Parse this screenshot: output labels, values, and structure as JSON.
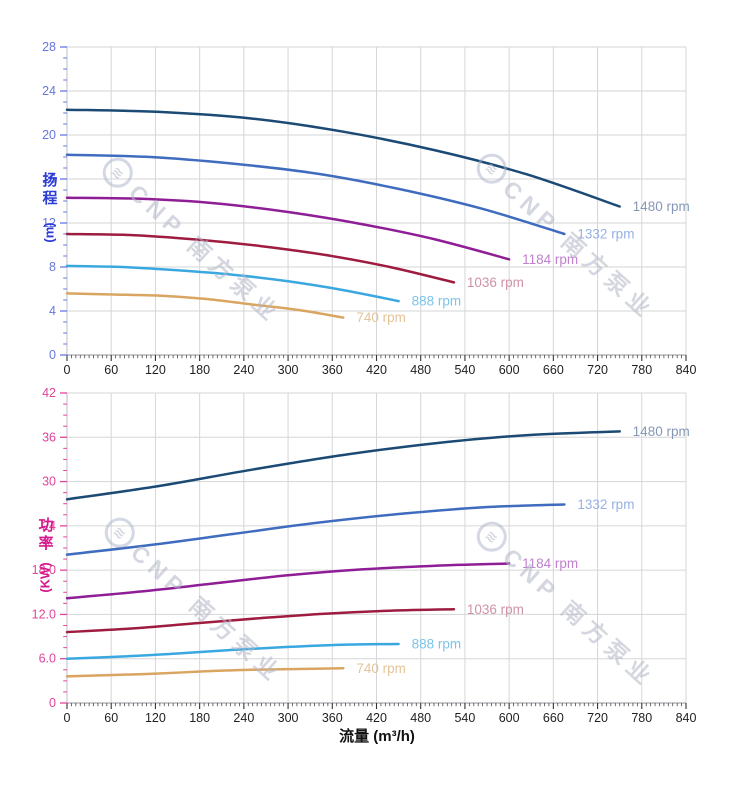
{
  "watermark": {
    "logo": "≋",
    "text": "CNP 南方泵业"
  },
  "chart_data": [
    {
      "type": "line",
      "title": "",
      "ylabel": "扬程 (m)",
      "ylabel_cn": "扬程",
      "ylabel_unit": "(m)",
      "xlabel": "",
      "xlim": [
        0,
        840
      ],
      "ylim": [
        0,
        28
      ],
      "grid": true,
      "legend_position": "end-of-curve",
      "x_ticks": [
        0,
        60,
        120,
        180,
        240,
        300,
        360,
        420,
        480,
        540,
        600,
        660,
        720,
        780,
        840
      ],
      "x_tick_labels": [
        "0",
        "60",
        "120",
        "180",
        "240",
        "300",
        "360",
        "420",
        "480",
        "540",
        "600",
        "660",
        "720",
        "780",
        "840"
      ],
      "x_minor_step": 6,
      "y_ticks": [
        0,
        4,
        8,
        12,
        16,
        20,
        24,
        28
      ],
      "y_tick_labels": [
        "0",
        "4",
        "8",
        "12",
        "16",
        "20",
        "24",
        "28"
      ],
      "y_minor_step": 1,
      "y_tick_color": "#6677dd",
      "x_tick_label_color": "#1f1f1f",
      "series": [
        {
          "name": "1480 rpm",
          "color": "#1b4a75",
          "label_color": "#8598b6",
          "points": [
            [
              0,
              22.3
            ],
            [
              125,
              22.1
            ],
            [
              250,
              21.5
            ],
            [
              375,
              20.3
            ],
            [
              500,
              18.6
            ],
            [
              625,
              16.4
            ],
            [
              750,
              13.5
            ]
          ]
        },
        {
          "name": "1332 rpm",
          "color": "#3f6cbf",
          "label_color": "#97b1e2",
          "points": [
            [
              0,
              18.2
            ],
            [
              113,
              18.0
            ],
            [
              225,
              17.4
            ],
            [
              338,
              16.5
            ],
            [
              450,
              15.1
            ],
            [
              563,
              13.3
            ],
            [
              675,
              11.0
            ]
          ]
        },
        {
          "name": "1184 rpm",
          "color": "#8e1d96",
          "label_color": "#c27fce",
          "points": [
            [
              0,
              14.3
            ],
            [
              100,
              14.2
            ],
            [
              200,
              13.8
            ],
            [
              300,
              13.0
            ],
            [
              400,
              11.9
            ],
            [
              500,
              10.5
            ],
            [
              600,
              8.7
            ]
          ]
        },
        {
          "name": "1036 rpm",
          "color": "#9e1c3f",
          "label_color": "#cf93a8",
          "points": [
            [
              0,
              11.0
            ],
            [
              88,
              10.9
            ],
            [
              175,
              10.5
            ],
            [
              263,
              9.9
            ],
            [
              350,
              9.1
            ],
            [
              438,
              8.0
            ],
            [
              525,
              6.6
            ]
          ]
        },
        {
          "name": "888 rpm",
          "color": "#3aa8e0",
          "label_color": "#7cc4ea",
          "points": [
            [
              0,
              8.1
            ],
            [
              75,
              8.0
            ],
            [
              150,
              7.7
            ],
            [
              225,
              7.3
            ],
            [
              300,
              6.7
            ],
            [
              375,
              5.9
            ],
            [
              450,
              4.9
            ]
          ]
        },
        {
          "name": "740 rpm",
          "color": "#d9a561",
          "label_color": "#e3c49a",
          "points": [
            [
              0,
              5.6
            ],
            [
              63,
              5.5
            ],
            [
              125,
              5.4
            ],
            [
              188,
              5.1
            ],
            [
              250,
              4.6
            ],
            [
              313,
              4.1
            ],
            [
              375,
              3.4
            ]
          ]
        }
      ]
    },
    {
      "type": "line",
      "title": "",
      "ylabel": "功率 (KW)",
      "ylabel_cn": "功率",
      "ylabel_unit": "(KW)",
      "xlabel": "流量 (m³/h)",
      "xlim": [
        0,
        840
      ],
      "ylim": [
        0,
        42
      ],
      "grid": true,
      "legend_position": "end-of-curve",
      "x_ticks": [
        0,
        60,
        120,
        180,
        240,
        300,
        360,
        420,
        480,
        540,
        600,
        660,
        720,
        780,
        840
      ],
      "x_tick_labels": [
        "0",
        "60",
        "120",
        "180",
        "240",
        "300",
        "360",
        "420",
        "480",
        "540",
        "600",
        "660",
        "720",
        "780",
        "840"
      ],
      "x_minor_step": 6,
      "y_ticks": [
        0,
        6,
        12,
        18,
        24,
        30,
        36,
        42
      ],
      "y_tick_labels": [
        "0",
        "6.0",
        "12.0",
        "18.0",
        "24",
        "30",
        "36",
        "42"
      ],
      "y_minor_step": 1.5,
      "y_tick_color": "#e0459a",
      "x_tick_label_color": "#1f1f1f",
      "series": [
        {
          "name": "1480 rpm",
          "color": "#1b4a75",
          "label_color": "#8598b6",
          "points": [
            [
              0,
              27.6
            ],
            [
              125,
              29.4
            ],
            [
              250,
              31.6
            ],
            [
              375,
              33.6
            ],
            [
              500,
              35.2
            ],
            [
              625,
              36.3
            ],
            [
              750,
              36.8
            ]
          ]
        },
        {
          "name": "1332 rpm",
          "color": "#3f6cbf",
          "label_color": "#97b1e2",
          "points": [
            [
              0,
              20.1
            ],
            [
              113,
              21.4
            ],
            [
              225,
              22.9
            ],
            [
              338,
              24.4
            ],
            [
              450,
              25.6
            ],
            [
              563,
              26.5
            ],
            [
              675,
              26.9
            ]
          ]
        },
        {
          "name": "1184 rpm",
          "color": "#8e1d96",
          "label_color": "#c27fce",
          "points": [
            [
              0,
              14.2
            ],
            [
              100,
              15.1
            ],
            [
              200,
              16.2
            ],
            [
              300,
              17.3
            ],
            [
              400,
              18.1
            ],
            [
              500,
              18.6
            ],
            [
              600,
              18.9
            ]
          ]
        },
        {
          "name": "1036 rpm",
          "color": "#9e1c3f",
          "label_color": "#cf93a8",
          "points": [
            [
              0,
              9.6
            ],
            [
              88,
              10.1
            ],
            [
              175,
              10.8
            ],
            [
              263,
              11.5
            ],
            [
              350,
              12.1
            ],
            [
              438,
              12.5
            ],
            [
              525,
              12.7
            ]
          ]
        },
        {
          "name": "888 rpm",
          "color": "#3aa8e0",
          "label_color": "#7cc4ea",
          "points": [
            [
              0,
              6.0
            ],
            [
              75,
              6.3
            ],
            [
              150,
              6.7
            ],
            [
              225,
              7.2
            ],
            [
              300,
              7.6
            ],
            [
              375,
              7.9
            ],
            [
              450,
              8.0
            ]
          ]
        },
        {
          "name": "740 rpm",
          "color": "#d9a561",
          "label_color": "#e3c49a",
          "points": [
            [
              0,
              3.6
            ],
            [
              63,
              3.8
            ],
            [
              125,
              4.0
            ],
            [
              188,
              4.3
            ],
            [
              250,
              4.5
            ],
            [
              313,
              4.6
            ],
            [
              375,
              4.7
            ]
          ]
        }
      ]
    }
  ]
}
